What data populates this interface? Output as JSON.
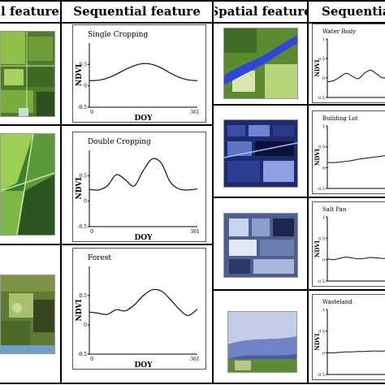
{
  "headers": {
    "spatial_left": "l feature",
    "sequential_left": "Sequential feature",
    "spatial_right": "Spatial feature",
    "sequential_right": "Sequential f"
  },
  "axis": {
    "xlabel": "DOY",
    "ylabel": "NDVI",
    "x_start": "0",
    "x_end": "361"
  },
  "images": [
    {
      "name": "single-cropping-image",
      "colors": {
        "base": "#4f7a2a",
        "light": "#8fbf46",
        "dark": "#2f4f1f"
      }
    },
    {
      "name": "double-cropping-image",
      "colors": {
        "base": "#3f7f2e",
        "light": "#9ccf52",
        "dark": "#2c5520"
      }
    },
    {
      "name": "forest-image",
      "colors": {
        "base": "#5e7a34",
        "light": "#a7c06a",
        "dark": "#37461f"
      }
    },
    {
      "name": "water-body-image",
      "colors": {
        "base": "#5b8a2f",
        "light": "#b6d67b",
        "water": "#2f46d8"
      }
    },
    {
      "name": "building-lot-image",
      "colors": {
        "base": "#1d2a6e",
        "light": "#6d83d2",
        "dark": "#0c1235"
      }
    },
    {
      "name": "salt-pan-image",
      "colors": {
        "base": "#4c5f8e",
        "light": "#c9d4ef",
        "dark": "#1e284f"
      }
    },
    {
      "name": "wasteland-image",
      "colors": {
        "base": "#4a5ca8",
        "light": "#c3cde8",
        "green": "#5d8a35"
      }
    }
  ],
  "chart_data": [
    {
      "type": "line",
      "title": "Single Cropping",
      "xlabel": "DOY",
      "ylabel": "NDVI",
      "xlim": [
        0,
        361
      ],
      "ylim": [
        -0.5,
        1
      ],
      "y_ticks": [
        "0.5",
        "0",
        "-0.5"
      ],
      "x_ticks": [
        "0",
        "361"
      ],
      "x": [
        0,
        30,
        60,
        90,
        120,
        150,
        180,
        210,
        240,
        270,
        300,
        330,
        361
      ],
      "y": [
        0.12,
        0.13,
        0.18,
        0.27,
        0.38,
        0.47,
        0.52,
        0.5,
        0.42,
        0.3,
        0.2,
        0.14,
        0.12
      ]
    },
    {
      "type": "line",
      "title": "Double Cropping",
      "xlabel": "DOY",
      "ylabel": "NDVI",
      "xlim": [
        0,
        361
      ],
      "ylim": [
        -0.5,
        1
      ],
      "y_ticks": [
        "0.5",
        "0",
        "-0.5"
      ],
      "x_ticks": [
        "0",
        "361"
      ],
      "x": [
        0,
        30,
        60,
        90,
        120,
        150,
        180,
        210,
        240,
        270,
        300,
        330,
        361
      ],
      "y": [
        0.23,
        0.22,
        0.3,
        0.52,
        0.42,
        0.3,
        0.6,
        0.83,
        0.75,
        0.38,
        0.24,
        0.22,
        0.24
      ]
    },
    {
      "type": "line",
      "title": "Forest",
      "xlabel": "DOY",
      "ylabel": "NDVI",
      "xlim": [
        0,
        361
      ],
      "ylim": [
        -0.5,
        1
      ],
      "y_ticks": [
        "0.5",
        "0",
        "-0.5"
      ],
      "x_ticks": [
        "0",
        "361"
      ],
      "x": [
        0,
        30,
        60,
        90,
        120,
        150,
        180,
        210,
        240,
        270,
        300,
        330,
        361
      ],
      "y": [
        0.22,
        0.2,
        0.18,
        0.26,
        0.24,
        0.34,
        0.5,
        0.6,
        0.58,
        0.44,
        0.27,
        0.16,
        0.27
      ]
    },
    {
      "type": "line",
      "title": "Water Body",
      "xlabel": "DOY",
      "ylabel": "NDVI",
      "xlim": [
        0,
        200
      ],
      "ylim": [
        -0.5,
        1
      ],
      "y_ticks": [
        "1",
        "0.5",
        "0",
        "-0.5"
      ],
      "x_ticks": [],
      "x": [
        0,
        20,
        40,
        60,
        80,
        100,
        120,
        140,
        160,
        180,
        200
      ],
      "y": [
        -0.1,
        -0.07,
        0.02,
        0.12,
        0.05,
        -0.02,
        0.12,
        0.2,
        0.1,
        0.0,
        0.05
      ]
    },
    {
      "type": "line",
      "title": "Building Lot",
      "xlabel": "DOY",
      "ylabel": "NDVI",
      "xlim": [
        0,
        200
      ],
      "ylim": [
        -0.5,
        1
      ],
      "y_ticks": [
        "1",
        "0.5",
        "0",
        "-0.5"
      ],
      "x_ticks": [],
      "x": [
        0,
        20,
        40,
        60,
        80,
        100,
        120,
        140,
        160,
        180,
        200
      ],
      "y": [
        0.12,
        0.12,
        0.13,
        0.15,
        0.17,
        0.2,
        0.22,
        0.24,
        0.26,
        0.28,
        0.3
      ]
    },
    {
      "type": "line",
      "title": "Salt Pan",
      "xlabel": "DOY",
      "ylabel": "NDVI",
      "xlim": [
        0,
        200
      ],
      "ylim": [
        -0.5,
        1
      ],
      "y_ticks": [
        "1",
        "0.5",
        "0",
        "-0.5"
      ],
      "x_ticks": [],
      "x": [
        0,
        20,
        40,
        60,
        80,
        100,
        120,
        140,
        160,
        180,
        200
      ],
      "y": [
        0.02,
        0.0,
        0.03,
        0.06,
        0.04,
        0.02,
        0.03,
        0.05,
        0.04,
        0.03,
        0.03
      ]
    },
    {
      "type": "line",
      "title": "Wasteland",
      "xlabel": "DOY",
      "ylabel": "NDVI",
      "xlim": [
        0,
        200
      ],
      "ylim": [
        -0.5,
        1
      ],
      "y_ticks": [
        "1",
        "0.5",
        "0",
        "-0.5"
      ],
      "x_ticks": [],
      "x": [
        0,
        20,
        40,
        60,
        80,
        100,
        120,
        140,
        160,
        180,
        200
      ],
      "y": [
        0.0,
        0.0,
        0.01,
        0.02,
        0.02,
        0.03,
        0.03,
        0.04,
        0.04,
        0.04,
        0.05
      ]
    }
  ]
}
